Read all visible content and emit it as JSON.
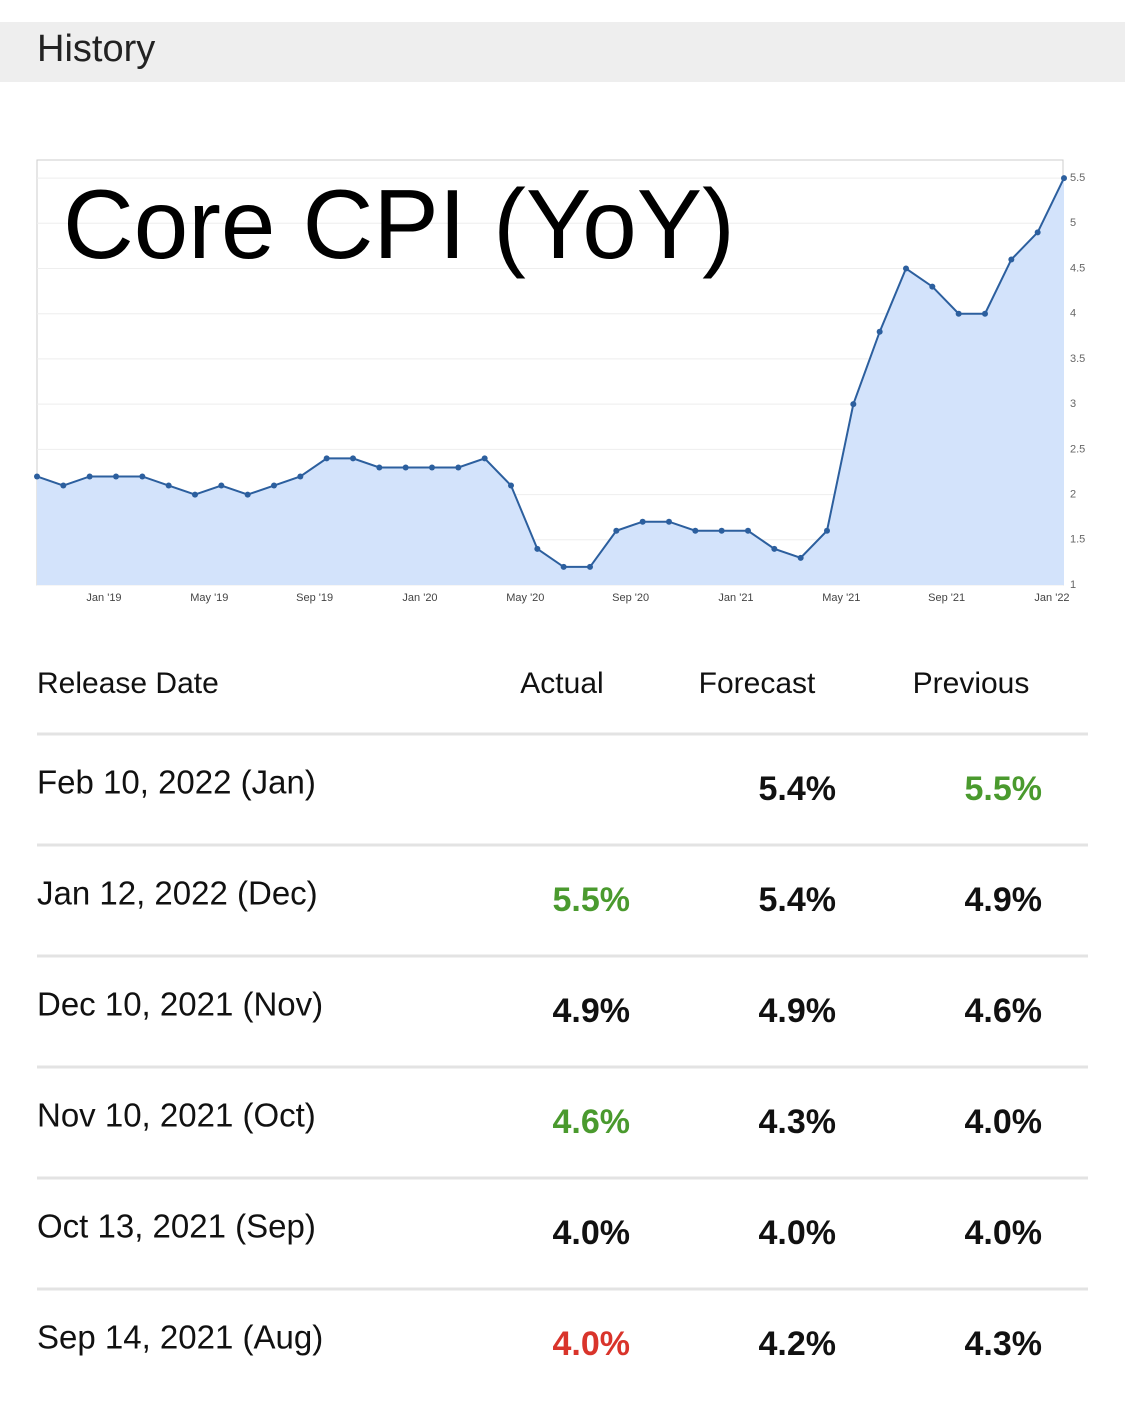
{
  "header": {
    "title": "History"
  },
  "chart_data": {
    "type": "line",
    "title": "Core CPI (YoY)",
    "categories": [
      null,
      null,
      null,
      "Jan '19",
      null,
      null,
      null,
      "May '19",
      null,
      null,
      null,
      "Sep '19",
      null,
      null,
      null,
      "Jan '20",
      null,
      null,
      null,
      "May '20",
      null,
      null,
      null,
      "Sep '20",
      null,
      null,
      null,
      "Jan '21",
      null,
      null,
      null,
      "May '21",
      null,
      null,
      null,
      "Sep '21",
      null,
      null,
      null,
      "Jan '22"
    ],
    "values": [
      2.2,
      2.1,
      2.2,
      2.2,
      2.2,
      2.1,
      2.0,
      2.1,
      2.0,
      2.1,
      2.2,
      2.4,
      2.4,
      2.3,
      2.3,
      2.3,
      2.3,
      2.4,
      2.1,
      1.4,
      1.2,
      1.2,
      1.6,
      1.7,
      1.7,
      1.6,
      1.6,
      1.6,
      1.4,
      1.3,
      1.6,
      3.0,
      3.8,
      4.5,
      4.3,
      4.0,
      4.0,
      4.6,
      4.9,
      5.5
    ],
    "color": "#2c5f9e",
    "area_color": "#d3e3fb",
    "ylim": [
      1,
      5.7
    ],
    "yticks": [
      1,
      1.5,
      2,
      2.5,
      3,
      3.5,
      4,
      4.5,
      5,
      5.5
    ],
    "grid": true
  },
  "table": {
    "columns": [
      "Release Date",
      "Actual",
      "Forecast",
      "Previous"
    ],
    "rows": [
      [
        "Feb 10, 2022 (Jan)",
        null,
        "5.4%",
        "5.5%"
      ],
      [
        "Jan 12, 2022 (Dec)",
        "5.5%",
        "5.4%",
        "4.9%"
      ],
      [
        "Dec 10, 2021 (Nov)",
        "4.9%",
        "4.9%",
        "4.6%"
      ],
      [
        "Nov 10, 2021 (Oct)",
        "4.6%",
        "4.3%",
        "4.0%"
      ],
      [
        "Oct 13, 2021 (Sep)",
        "4.0%",
        "4.0%",
        "4.0%"
      ],
      [
        "Sep 14, 2021 (Aug)",
        "4.0%",
        "4.2%",
        "4.3%"
      ]
    ],
    "colors": [
      [
        null,
        null,
        null,
        "#4a9a2e"
      ],
      [
        null,
        "#4a9a2e",
        null,
        null
      ],
      [
        null,
        null,
        null,
        null
      ],
      [
        null,
        "#4a9a2e",
        null,
        null
      ],
      [
        null,
        null,
        null,
        null
      ],
      [
        null,
        "#d9342b",
        null,
        null
      ]
    ]
  }
}
